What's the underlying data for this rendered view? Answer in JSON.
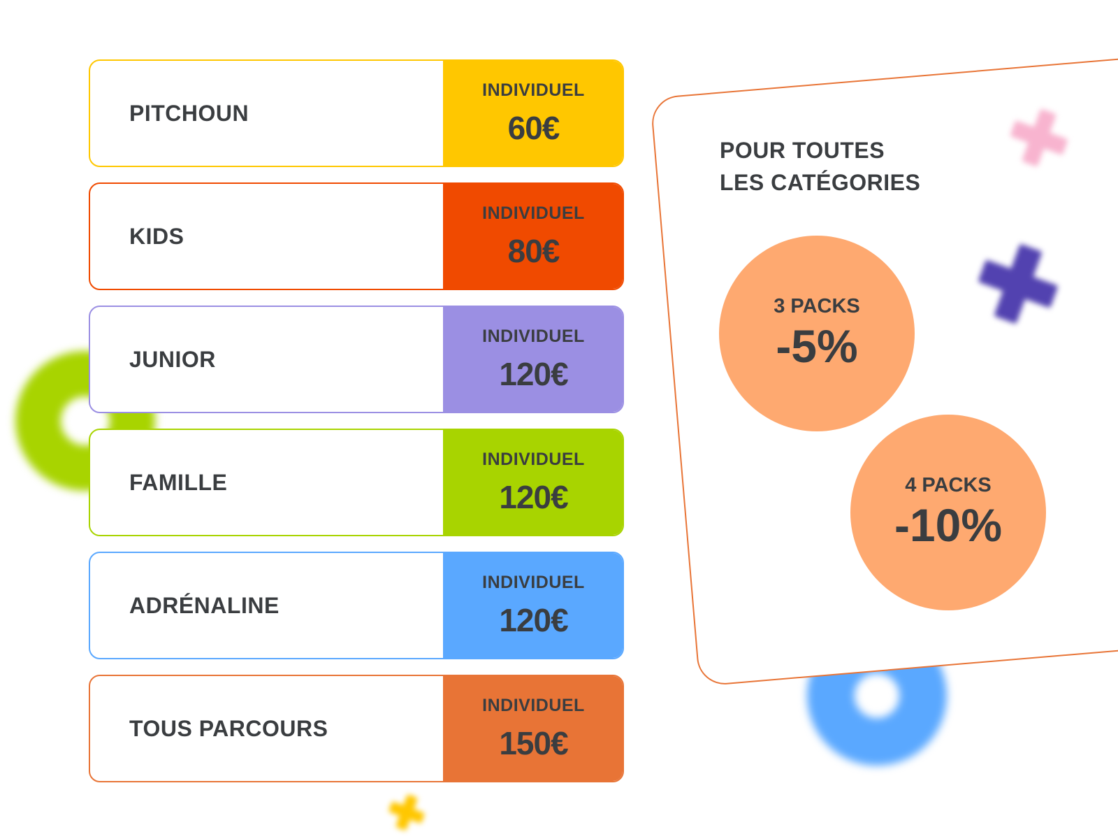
{
  "colors": {
    "text": "#3a3d40",
    "yellow": "#FFC700",
    "red_orange": "#F04A00",
    "purple": "#9B8FE3",
    "green": "#A8D400",
    "blue": "#5AA8FF",
    "orange": "#E87436",
    "circle": "#FEA970"
  },
  "pricing": [
    {
      "name": "PITCHOUN",
      "label": "INDIVIDUEL",
      "price": "60€",
      "color": "#FFC700"
    },
    {
      "name": "KIDS",
      "label": "INDIVIDUEL",
      "price": "80€",
      "color": "#F04A00"
    },
    {
      "name": "JUNIOR",
      "label": "INDIVIDUEL",
      "price": "120€",
      "color": "#9B8FE3"
    },
    {
      "name": "FAMILLE",
      "label": "INDIVIDUEL",
      "price": "120€",
      "color": "#A8D400"
    },
    {
      "name": "ADRÉNALINE",
      "label": "INDIVIDUEL",
      "price": "120€",
      "color": "#5AA8FF"
    },
    {
      "name": "TOUS PARCOURS",
      "label": "INDIVIDUEL",
      "price": "150€",
      "color": "#E87436"
    }
  ],
  "discounts": {
    "title_line1": "POUR TOUTES",
    "title_line2": "LES CATÉGORIES",
    "items": [
      {
        "packs": "3 PACKS",
        "percent": "-5%"
      },
      {
        "packs": "4 PACKS",
        "percent": "-10%"
      }
    ]
  },
  "decorations": [
    "green-ring",
    "blue-ring",
    "pink-plus",
    "purple-plus",
    "yellow-plus"
  ]
}
